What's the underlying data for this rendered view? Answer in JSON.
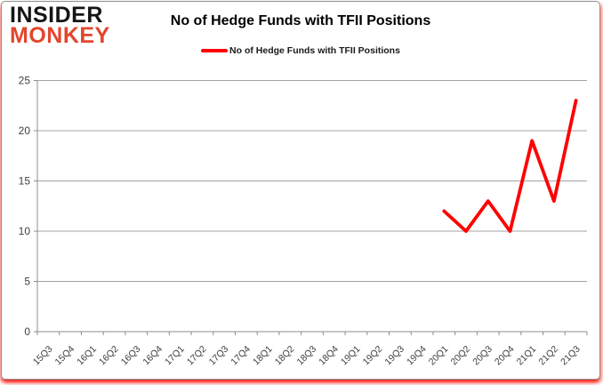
{
  "logo": {
    "line1": "INSIDER",
    "line2": "MONKEY"
  },
  "theme": {
    "line_color": "#fe0000",
    "logo_black": "#151515",
    "logo_red": "#e2462d",
    "grid_color": "#a3a3a3",
    "axis_color": "#8c8c8c",
    "label_color": "#404040",
    "title_color": "#000000"
  },
  "chart_data": {
    "type": "line",
    "title": "No of Hedge Funds with TFII Positions",
    "categories": [
      "15Q3",
      "15Q4",
      "16Q1",
      "16Q2",
      "16Q3",
      "16Q4",
      "17Q1",
      "17Q2",
      "17Q3",
      "17Q4",
      "18Q1",
      "18Q2",
      "18Q3",
      "18Q4",
      "19Q1",
      "19Q2",
      "19Q3",
      "19Q4",
      "20Q1",
      "20Q2",
      "20Q3",
      "20Q4",
      "21Q1",
      "21Q2",
      "21Q3"
    ],
    "series": [
      {
        "name": "No of Hedge Funds with TFII Positions",
        "color": "#fe0000",
        "values": [
          null,
          null,
          null,
          null,
          null,
          null,
          null,
          null,
          null,
          null,
          null,
          null,
          null,
          null,
          null,
          null,
          null,
          null,
          12,
          10,
          13,
          10,
          19,
          13,
          23
        ]
      }
    ],
    "ylim": [
      0,
      25
    ],
    "ytick_step": 5,
    "grid": true,
    "legend_position": "top-center",
    "xlabel": "",
    "ylabel": ""
  }
}
